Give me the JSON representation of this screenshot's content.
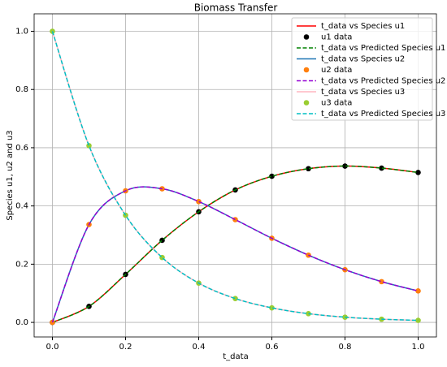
{
  "chart_data": {
    "type": "line",
    "title": "Biomass Transfer",
    "x_label": "t_data",
    "y_label": "Species u1, u2 and u3",
    "grid": true,
    "legend": "upper right",
    "xlim": [
      -0.05,
      1.05
    ],
    "ylim": [
      -0.05,
      1.06
    ],
    "xticks": [
      {
        "value": 0,
        "label": "0.0"
      },
      {
        "value": 0.2,
        "label": "0.2"
      },
      {
        "value": 0.4,
        "label": "0.4"
      },
      {
        "value": 0.6,
        "label": "0.6"
      },
      {
        "value": 0.8,
        "label": "0.8"
      },
      {
        "value": 1,
        "label": "1.0"
      }
    ],
    "yticks": [
      {
        "value": 0,
        "label": "0.0"
      },
      {
        "value": 0.2,
        "label": "0.2"
      },
      {
        "value": 0.4,
        "label": "0.4"
      },
      {
        "value": 0.6,
        "label": "0.6"
      },
      {
        "value": 0.8,
        "label": "0.8"
      },
      {
        "value": 1,
        "label": "1.0"
      }
    ],
    "x": [
      0,
      0.1,
      0.2,
      0.3,
      0.4,
      0.5,
      0.6,
      0.7,
      0.8,
      0.9,
      1.0
    ],
    "series": [
      {
        "name": "t_data vs Species u1",
        "type": "line",
        "color": "#ff0000",
        "values": [
          0,
          0.055,
          0.165,
          0.282,
          0.38,
          0.455,
          0.502,
          0.528,
          0.537,
          0.53,
          0.515
        ]
      },
      {
        "name": "u1 data",
        "type": "scatter",
        "color": "#000000",
        "values": [
          0,
          0.055,
          0.165,
          0.282,
          0.38,
          0.455,
          0.502,
          0.528,
          0.537,
          0.53,
          0.515
        ]
      },
      {
        "name": "t_data vs Predicted Species u1",
        "type": "line",
        "dashed": true,
        "color": "#008000",
        "values": [
          0,
          0.055,
          0.165,
          0.282,
          0.38,
          0.455,
          0.502,
          0.528,
          0.537,
          0.53,
          0.515
        ]
      },
      {
        "name": "t_data vs Species u2",
        "type": "line",
        "color": "#1f77b4",
        "values": [
          0,
          0.336,
          0.452,
          0.459,
          0.415,
          0.353,
          0.289,
          0.231,
          0.181,
          0.14,
          0.108
        ]
      },
      {
        "name": "u2 data",
        "type": "scatter",
        "color": "#ff7f0e",
        "values": [
          0,
          0.336,
          0.452,
          0.459,
          0.415,
          0.353,
          0.289,
          0.231,
          0.181,
          0.14,
          0.108
        ]
      },
      {
        "name": "t_data vs Predicted Species u2",
        "type": "line",
        "dashed": true,
        "color": "#9400d3",
        "values": [
          0,
          0.336,
          0.452,
          0.459,
          0.415,
          0.353,
          0.289,
          0.231,
          0.181,
          0.14,
          0.108
        ]
      },
      {
        "name": "t_data vs Species u3",
        "type": "line",
        "color": "#ffb6c1",
        "values": [
          1,
          0.607,
          0.368,
          0.223,
          0.135,
          0.082,
          0.05,
          0.03,
          0.018,
          0.011,
          0.007
        ]
      },
      {
        "name": "u3 data",
        "type": "scatter",
        "color": "#9acd32",
        "values": [
          1,
          0.607,
          0.368,
          0.223,
          0.135,
          0.082,
          0.05,
          0.03,
          0.018,
          0.011,
          0.007
        ]
      },
      {
        "name": "t_data vs Predicted Species u3",
        "type": "line",
        "dashed": true,
        "color": "#00bfc4",
        "values": [
          1,
          0.607,
          0.368,
          0.223,
          0.135,
          0.082,
          0.05,
          0.03,
          0.018,
          0.011,
          0.007
        ]
      }
    ]
  }
}
